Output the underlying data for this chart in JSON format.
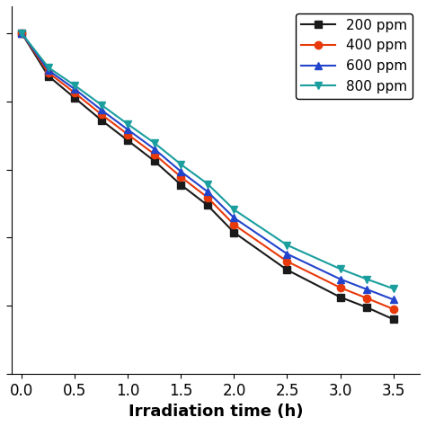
{
  "xlabel": "Irradiation time (h)",
  "xlim": [
    -0.1,
    3.75
  ],
  "ylim": [
    0,
    1.08
  ],
  "series": [
    {
      "label": "200 ppm",
      "color": "#1a1a1a",
      "marker": "s",
      "x": [
        0,
        0.25,
        0.5,
        0.75,
        1.0,
        1.25,
        1.5,
        1.75,
        2.0,
        2.5,
        3.0,
        3.25,
        3.5
      ],
      "y": [
        1.0,
        0.875,
        0.81,
        0.745,
        0.685,
        0.625,
        0.555,
        0.495,
        0.415,
        0.305,
        0.225,
        0.195,
        0.16
      ]
    },
    {
      "label": "400 ppm",
      "color": "#e8390a",
      "marker": "o",
      "x": [
        0,
        0.25,
        0.5,
        0.75,
        1.0,
        1.25,
        1.5,
        1.75,
        2.0,
        2.5,
        3.0,
        3.25,
        3.5
      ],
      "y": [
        1.0,
        0.885,
        0.825,
        0.762,
        0.703,
        0.645,
        0.578,
        0.518,
        0.438,
        0.33,
        0.253,
        0.222,
        0.19
      ]
    },
    {
      "label": "600 ppm",
      "color": "#2244cc",
      "marker": "^",
      "x": [
        0,
        0.25,
        0.5,
        0.75,
        1.0,
        1.25,
        1.5,
        1.75,
        2.0,
        2.5,
        3.0,
        3.25,
        3.5
      ],
      "y": [
        1.0,
        0.892,
        0.836,
        0.775,
        0.717,
        0.66,
        0.594,
        0.535,
        0.458,
        0.352,
        0.278,
        0.248,
        0.218
      ]
    },
    {
      "label": "800 ppm",
      "color": "#1a9e9e",
      "marker": "v",
      "x": [
        0,
        0.25,
        0.5,
        0.75,
        1.0,
        1.25,
        1.5,
        1.75,
        2.0,
        2.5,
        3.0,
        3.25,
        3.5
      ],
      "y": [
        1.0,
        0.9,
        0.847,
        0.79,
        0.733,
        0.678,
        0.615,
        0.558,
        0.482,
        0.378,
        0.308,
        0.278,
        0.25
      ]
    }
  ],
  "xticks": [
    0,
    0.5,
    1,
    1.5,
    2,
    2.5,
    3,
    3.5
  ],
  "legend_loc": "upper right",
  "markersize": 6,
  "linewidth": 1.5,
  "font_size": 13,
  "tick_font_size": 12,
  "legend_font_size": 11
}
